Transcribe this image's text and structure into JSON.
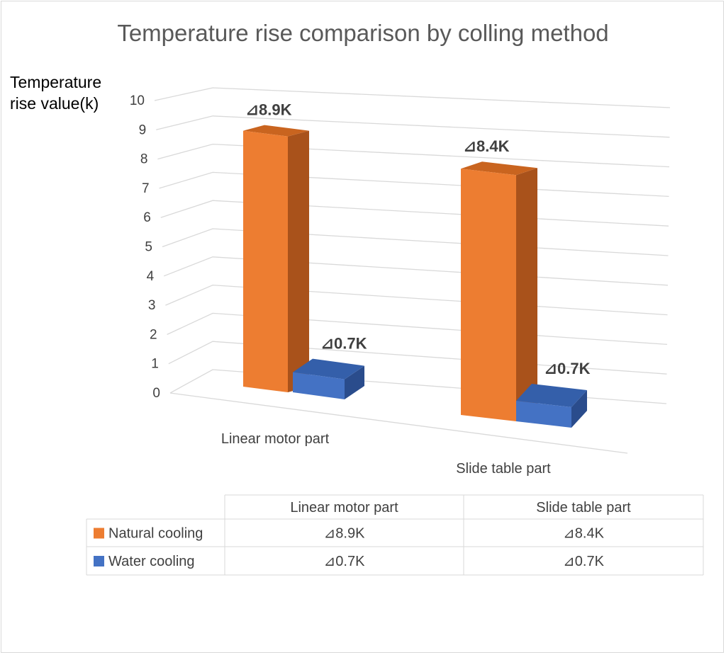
{
  "chart_data": {
    "type": "bar",
    "title": "Temperature rise comparison by colling method",
    "ylabel_lines": [
      "Temperature",
      "rise value(k)"
    ],
    "categories": [
      "Linear motor part",
      "Slide table part"
    ],
    "ylim": [
      0,
      10
    ],
    "yticks": [
      "0",
      "1",
      "2",
      "3",
      "4",
      "5",
      "6",
      "7",
      "8",
      "9",
      "10"
    ],
    "grid": true,
    "legend": "data-table",
    "series": [
      {
        "name": "Natural cooling",
        "values": [
          8.9,
          8.4
        ],
        "labels": [
          "⊿8.9K",
          "⊿8.4K"
        ],
        "color": "#ED7D31",
        "color_side": "#A9521B",
        "color_top": "#C9641F"
      },
      {
        "name": "Water cooling",
        "values": [
          0.7,
          0.7
        ],
        "labels": [
          "⊿0.7K",
          "⊿0.7K"
        ],
        "color": "#4472C4",
        "color_side": "#2A4C8C",
        "color_top": "#345FAA"
      }
    ]
  }
}
